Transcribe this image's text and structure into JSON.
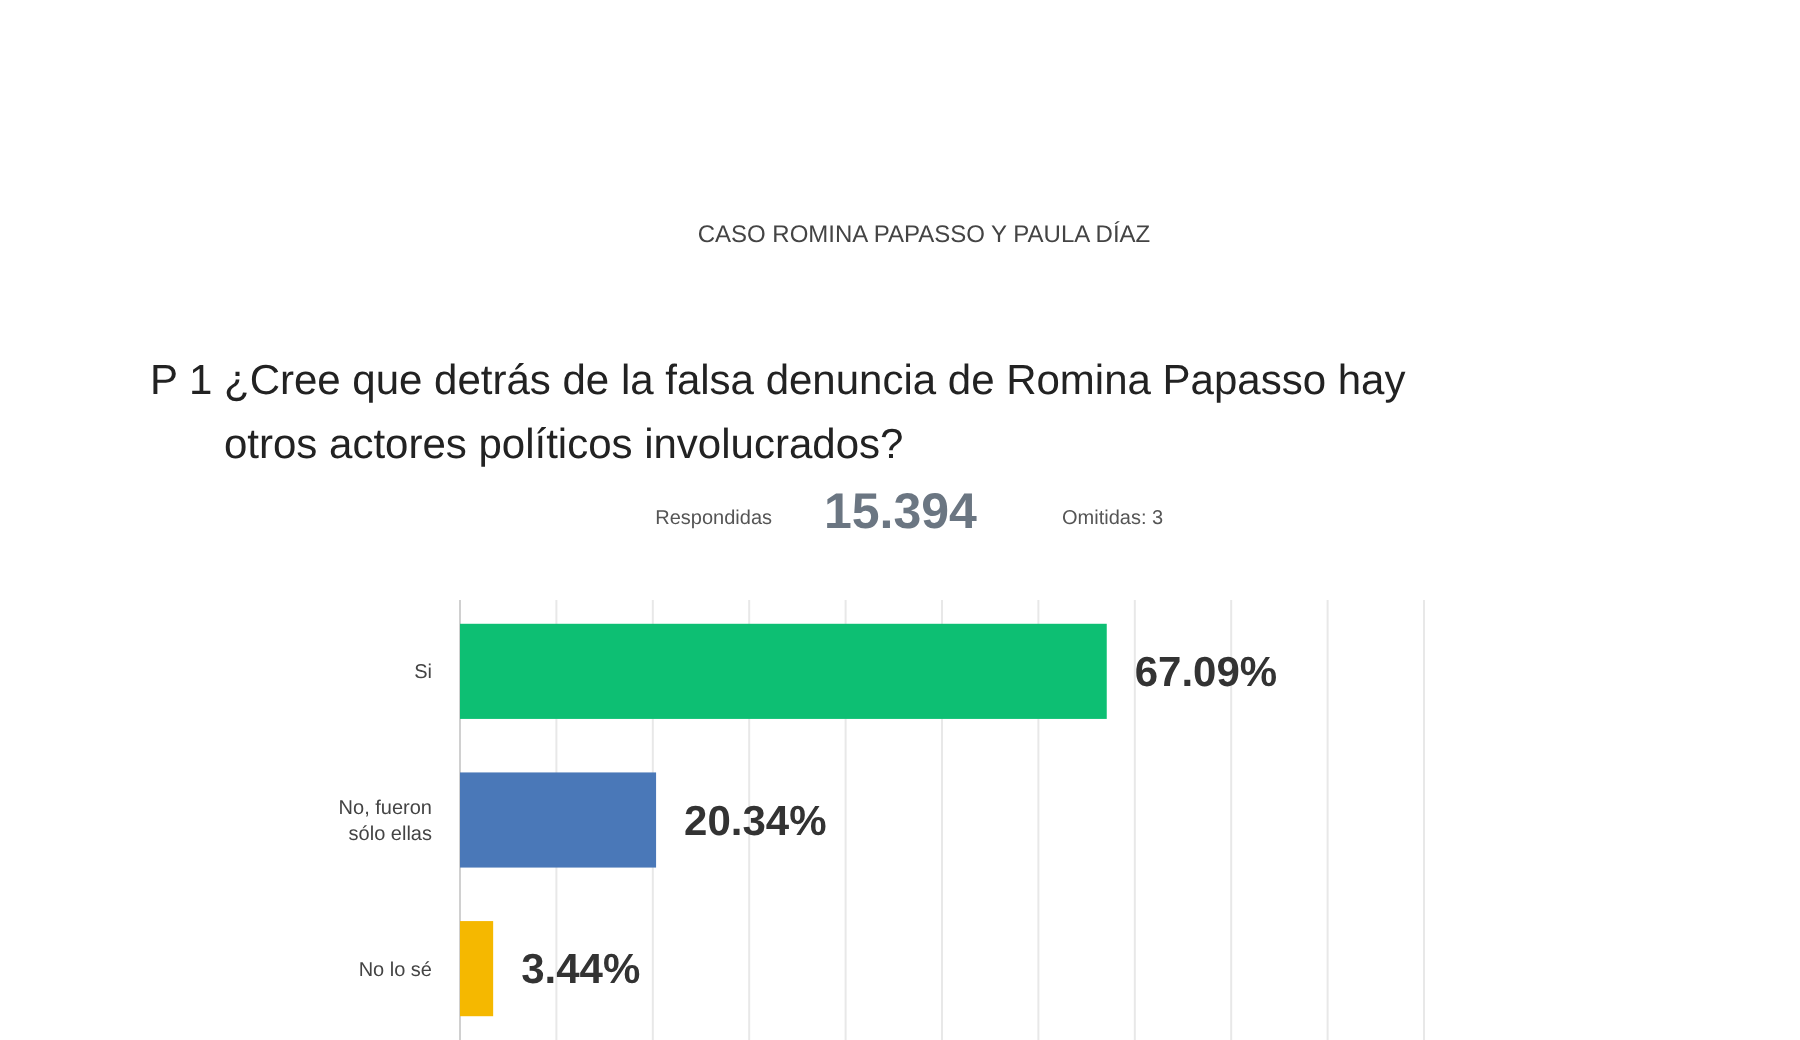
{
  "chart_data": {
    "type": "bar",
    "orientation": "horizontal",
    "title": "¿Cree que detrás de la falsa denuncia de Romina Papasso hay otros actores políticos involucrados?",
    "annotations": [
      "CASO ROMINA PAPASSO Y PAULA DÍAZ",
      "P 1",
      "Respondidas",
      "15.394",
      "Omitidas: 3"
    ],
    "categories": [
      "Si",
      "No, fueron sólo ellas",
      "No lo sé"
    ],
    "values": [
      67.09,
      20.34,
      3.44
    ],
    "value_labels": [
      "67.09%",
      "20.34%",
      "3.44%"
    ],
    "colors": [
      "#0dbf73",
      "#4a78b8",
      "#f5b800"
    ],
    "xlim": [
      0,
      100
    ],
    "xticks": [
      {
        "value": 0,
        "label": null
      },
      {
        "value": 10,
        "label": null
      },
      {
        "value": 20,
        "label": null
      },
      {
        "value": 30,
        "label": null
      },
      {
        "value": 40,
        "label": null
      },
      {
        "value": 50,
        "label": null
      },
      {
        "value": 60,
        "label": null
      },
      {
        "value": 70,
        "label": null
      },
      {
        "value": 80,
        "label": null
      },
      {
        "value": 90,
        "label": null
      },
      {
        "value": 100,
        "label": null
      }
    ],
    "grid": "x",
    "tick_labels": "y"
  }
}
